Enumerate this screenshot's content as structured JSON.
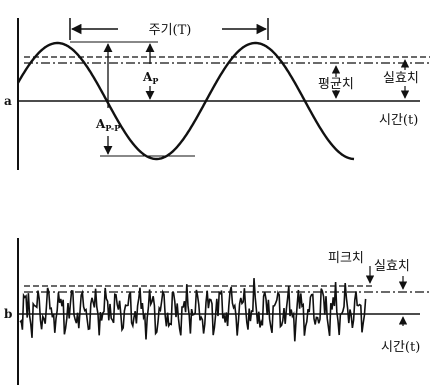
{
  "top": {
    "panel_label": "a",
    "period_label": "주기(T)",
    "peak_label": "A",
    "peak_sub": "P",
    "p2p_label": "A",
    "p2p_sub": "P-P",
    "average_label": "평균치",
    "rms_label": "실효치",
    "time_label": "시간(t)"
  },
  "bottom": {
    "panel_label": "b",
    "peak_label": "피크치",
    "rms_label": "실효치",
    "time_label": "시간(t)"
  }
}
